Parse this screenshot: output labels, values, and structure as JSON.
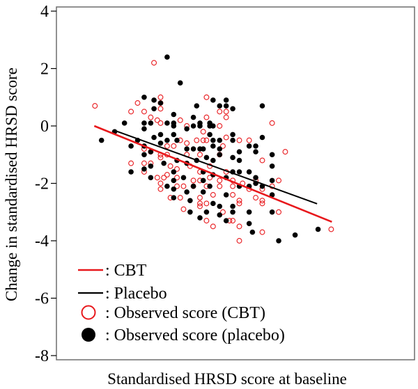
{
  "chart_data": {
    "type": "scatter",
    "title": "",
    "xlabel": "Standardised HRSD score at baseline",
    "ylabel": "Change in standardised HRSD score",
    "ylim": [
      -8.2,
      4.15
    ],
    "yticks": [
      4,
      2,
      0,
      -2,
      -4,
      -6,
      -8
    ],
    "ytick_labels": [
      "4",
      "2",
      "0",
      "-2",
      "-4",
      "-6",
      "-8"
    ],
    "xticks_shown": false,
    "grid": false,
    "legend_placement": "bottom-left",
    "colors": {
      "cbt": "#e8181c",
      "placebo": "#000000"
    },
    "legend": [
      {
        "label": ": CBT",
        "symbol": "line",
        "color": "#e8181c"
      },
      {
        "label": ": Placebo",
        "symbol": "line",
        "color": "#000000"
      },
      {
        "label": ": Observed score (CBT)",
        "symbol": "open-circle",
        "color": "#e8181c"
      },
      {
        "label": ": Observed score (placebo)",
        "symbol": "filled-circle",
        "color": "#000000"
      }
    ],
    "fit_lines": [
      {
        "name": "CBT",
        "color": "#e8181c",
        "points": [
          [
            -3.22,
            0.0
          ],
          [
            4.02,
            -3.34
          ]
        ]
      },
      {
        "name": "Placebo",
        "color": "#000000",
        "points": [
          [
            -2.57,
            -0.17
          ],
          [
            3.57,
            -2.71
          ]
        ]
      }
    ],
    "series": [
      {
        "name": "Observed score (CBT)",
        "marker": "open-circle",
        "color": "#e8181c",
        "points": [
          [
            -1.4,
            2.2
          ],
          [
            -3.2,
            0.7
          ],
          [
            -2.1,
            0.5
          ],
          [
            -1.9,
            0.8
          ],
          [
            -1.7,
            0.5
          ],
          [
            -1.2,
            1.0
          ],
          [
            -1.2,
            0.8
          ],
          [
            -1.2,
            0.6
          ],
          [
            0.2,
            1.0
          ],
          [
            0.6,
            0.5
          ],
          [
            0.8,
            0.5
          ],
          [
            0.8,
            0.3
          ],
          [
            -0.6,
            0.2
          ],
          [
            -1.5,
            0.3
          ],
          [
            -1.3,
            0.2
          ],
          [
            -1.2,
            0.1
          ],
          [
            0.2,
            0.3
          ],
          [
            0.6,
            0.0
          ],
          [
            -0.4,
            0.0
          ],
          [
            0.1,
            -0.2
          ],
          [
            2.2,
            0.1
          ],
          [
            0.8,
            -0.4
          ],
          [
            1.2,
            -0.5
          ],
          [
            1.5,
            -0.5
          ],
          [
            2.6,
            -0.9
          ],
          [
            -0.1,
            -0.5
          ],
          [
            0.1,
            -0.5
          ],
          [
            0.2,
            -0.5
          ],
          [
            -0.4,
            -0.6
          ],
          [
            -0.6,
            -0.5
          ],
          [
            -1.0,
            -0.7
          ],
          [
            -0.8,
            -0.7
          ],
          [
            -1.7,
            -0.8
          ],
          [
            -1.5,
            -0.9
          ],
          [
            -1.2,
            -1.0
          ],
          [
            -1.0,
            -1.0
          ],
          [
            -0.4,
            -1.0
          ],
          [
            0.0,
            -1.0
          ],
          [
            0.7,
            -0.7
          ],
          [
            0.6,
            -1.0
          ],
          [
            -1.2,
            -1.1
          ],
          [
            -1.7,
            -1.3
          ],
          [
            -1.5,
            -1.3
          ],
          [
            -2.1,
            -1.3
          ],
          [
            -0.9,
            -1.4
          ],
          [
            -0.7,
            -1.5
          ],
          [
            -0.3,
            -1.4
          ],
          [
            0.0,
            -1.6
          ],
          [
            0.3,
            -1.4
          ],
          [
            0.8,
            -1.6
          ],
          [
            1.9,
            -1.2
          ],
          [
            -1.7,
            -1.6
          ],
          [
            -1.3,
            -1.8
          ],
          [
            -1.1,
            -1.8
          ],
          [
            -1.0,
            -1.7
          ],
          [
            -0.7,
            -1.8
          ],
          [
            -0.2,
            -1.9
          ],
          [
            0.0,
            -1.9
          ],
          [
            0.3,
            -1.8
          ],
          [
            0.6,
            -1.9
          ],
          [
            1.0,
            -1.9
          ],
          [
            1.3,
            -2.0
          ],
          [
            1.7,
            -1.9
          ],
          [
            2.4,
            -1.9
          ],
          [
            -1.2,
            -2.0
          ],
          [
            -1.2,
            -2.2
          ],
          [
            -0.7,
            -2.1
          ],
          [
            -0.5,
            -2.1
          ],
          [
            -0.2,
            -2.1
          ],
          [
            0.2,
            -2.1
          ],
          [
            0.6,
            -2.1
          ],
          [
            1.0,
            -2.1
          ],
          [
            1.5,
            -2.2
          ],
          [
            1.9,
            -2.2
          ],
          [
            2.2,
            -2.1
          ],
          [
            -0.9,
            -2.5
          ],
          [
            -0.6,
            -2.5
          ],
          [
            0.0,
            -2.5
          ],
          [
            0.4,
            -2.4
          ],
          [
            1.0,
            -2.4
          ],
          [
            1.2,
            -2.6
          ],
          [
            1.7,
            -2.5
          ],
          [
            1.9,
            -2.6
          ],
          [
            0.0,
            -2.7
          ],
          [
            0.2,
            -2.7
          ],
          [
            1.2,
            -2.7
          ],
          [
            -0.5,
            -2.9
          ],
          [
            0.0,
            -2.8
          ],
          [
            0.7,
            -3.0
          ],
          [
            2.4,
            -3.0
          ],
          [
            1.9,
            -2.7
          ],
          [
            0.2,
            -3.3
          ],
          [
            0.4,
            -3.5
          ],
          [
            0.9,
            -3.3
          ],
          [
            1.0,
            -3.3
          ],
          [
            1.2,
            -3.5
          ],
          [
            1.9,
            -3.7
          ],
          [
            4.0,
            -3.6
          ],
          [
            1.2,
            -4.0
          ]
        ]
      },
      {
        "name": "Observed score (placebo)",
        "marker": "filled-circle",
        "color": "#000000",
        "points": [
          [
            -1.0,
            2.4
          ],
          [
            -0.6,
            1.5
          ],
          [
            -1.7,
            1.0
          ],
          [
            -1.4,
            0.9
          ],
          [
            -1.2,
            0.8
          ],
          [
            0.4,
            0.9
          ],
          [
            0.8,
            0.9
          ],
          [
            0.6,
            0.7
          ],
          [
            0.8,
            0.7
          ],
          [
            1.0,
            0.6
          ],
          [
            1.9,
            0.7
          ],
          [
            -0.1,
            0.7
          ],
          [
            -1.4,
            0.6
          ],
          [
            -0.8,
            0.4
          ],
          [
            -2.3,
            0.1
          ],
          [
            -1.7,
            0.1
          ],
          [
            -1.5,
            0.1
          ],
          [
            -1.0,
            0.1
          ],
          [
            -0.8,
            0.1
          ],
          [
            -0.2,
            0.3
          ],
          [
            0.0,
            0.1
          ],
          [
            0.3,
            0.1
          ],
          [
            -0.8,
            0.0
          ],
          [
            -0.2,
            0.0
          ],
          [
            0.0,
            0.0
          ],
          [
            0.3,
            0.0
          ],
          [
            0.4,
            0.0
          ],
          [
            -2.6,
            -0.2
          ],
          [
            -1.7,
            -0.1
          ],
          [
            -0.4,
            -0.1
          ],
          [
            -3.0,
            -0.5
          ],
          [
            -1.9,
            -0.5
          ],
          [
            -1.2,
            -0.3
          ],
          [
            -1.4,
            -0.4
          ],
          [
            -1.0,
            -0.5
          ],
          [
            -0.8,
            -0.3
          ],
          [
            -0.7,
            -0.5
          ],
          [
            0.3,
            -0.3
          ],
          [
            0.4,
            -0.5
          ],
          [
            0.6,
            -0.5
          ],
          [
            1.0,
            -0.3
          ],
          [
            1.0,
            -0.5
          ],
          [
            1.9,
            -0.4
          ],
          [
            -2.1,
            -0.7
          ],
          [
            -1.7,
            -0.7
          ],
          [
            -1.2,
            -0.6
          ],
          [
            -0.4,
            -0.8
          ],
          [
            -0.2,
            -0.8
          ],
          [
            0.0,
            -0.8
          ],
          [
            0.1,
            -0.8
          ],
          [
            0.4,
            -0.7
          ],
          [
            0.6,
            -0.8
          ],
          [
            1.5,
            -0.7
          ],
          [
            1.7,
            -0.7
          ],
          [
            -1.7,
            -1.0
          ],
          [
            -1.5,
            -0.9
          ],
          [
            -1.1,
            -1.3
          ],
          [
            -1.5,
            -1.4
          ],
          [
            -0.7,
            -1.2
          ],
          [
            -0.4,
            -1.3
          ],
          [
            -0.1,
            -1.2
          ],
          [
            0.2,
            -1.1
          ],
          [
            0.4,
            -1.2
          ],
          [
            0.6,
            -1.0
          ],
          [
            1.0,
            -1.1
          ],
          [
            1.2,
            -0.9
          ],
          [
            1.2,
            -1.2
          ],
          [
            1.7,
            -0.9
          ],
          [
            2.2,
            -1.0
          ],
          [
            2.2,
            -1.4
          ],
          [
            -2.1,
            -1.6
          ],
          [
            -1.7,
            -1.5
          ],
          [
            -1.5,
            -1.8
          ],
          [
            -0.8,
            -1.6
          ],
          [
            -0.5,
            -1.8
          ],
          [
            0.1,
            -1.6
          ],
          [
            0.4,
            -1.7
          ],
          [
            0.8,
            -1.8
          ],
          [
            1.0,
            -1.6
          ],
          [
            1.2,
            -1.6
          ],
          [
            1.5,
            -1.6
          ],
          [
            1.7,
            -1.8
          ],
          [
            -1.0,
            -2.1
          ],
          [
            -0.8,
            -1.9
          ],
          [
            -0.2,
            -2.1
          ],
          [
            0.1,
            -1.9
          ],
          [
            0.3,
            -2.1
          ],
          [
            1.2,
            -2.1
          ],
          [
            1.5,
            -2.1
          ],
          [
            1.7,
            -2.0
          ],
          [
            2.2,
            -1.9
          ],
          [
            1.9,
            -2.1
          ],
          [
            -0.8,
            -2.2
          ],
          [
            -0.4,
            -2.3
          ],
          [
            0.1,
            -2.3
          ],
          [
            0.8,
            -2.4
          ],
          [
            2.2,
            -2.4
          ],
          [
            -0.8,
            -2.5
          ],
          [
            -0.3,
            -2.6
          ],
          [
            0.4,
            -2.7
          ],
          [
            0.6,
            -2.8
          ],
          [
            1.0,
            -2.8
          ],
          [
            1.0,
            -3.0
          ],
          [
            1.5,
            -3.0
          ],
          [
            2.2,
            -3.0
          ],
          [
            -0.3,
            -3.0
          ],
          [
            0.2,
            -3.0
          ],
          [
            0.6,
            -3.1
          ],
          [
            0.0,
            -3.2
          ],
          [
            0.8,
            -3.3
          ],
          [
            1.5,
            -3.4
          ],
          [
            1.6,
            -3.7
          ],
          [
            3.6,
            -3.6
          ],
          [
            2.9,
            -3.8
          ],
          [
            2.4,
            -4.0
          ]
        ]
      }
    ]
  }
}
